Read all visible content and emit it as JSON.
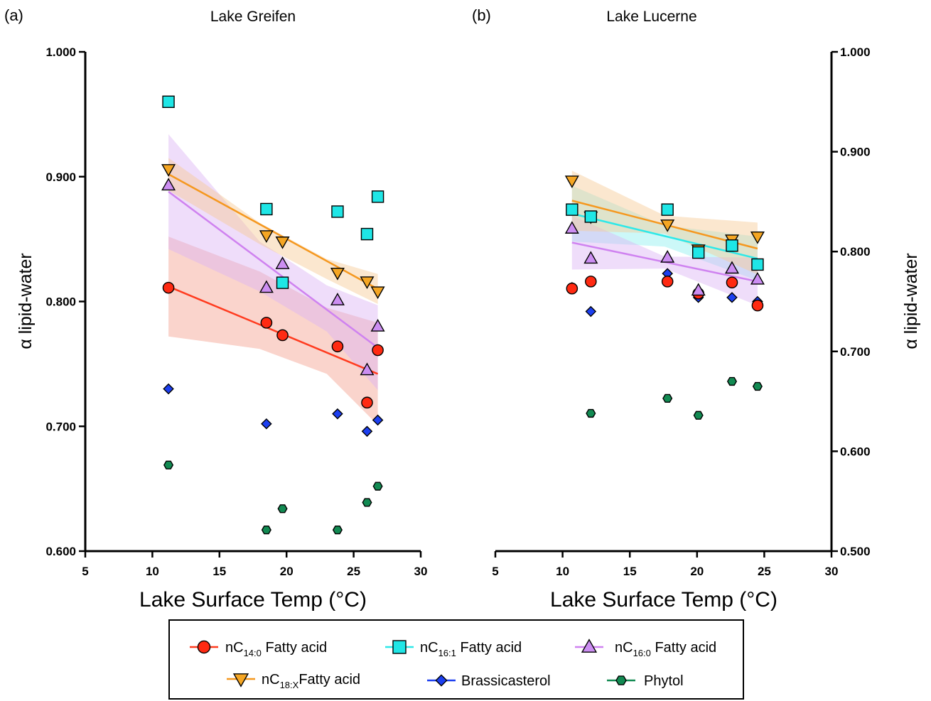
{
  "chart_data": [
    {
      "panel": "(a)",
      "title": "Lake Greifen",
      "type": "scatter",
      "xlabel": "Lake Surface Temp (°C)",
      "ylabel": "α lipid-water",
      "xlim": [
        5,
        30
      ],
      "ylim": [
        0.6,
        1.0
      ],
      "x_ticks": [
        "5",
        "10",
        "15",
        "20",
        "25",
        "30"
      ],
      "y_ticks": [
        "0.600",
        "0.700",
        "0.800",
        "0.900",
        "1.000"
      ],
      "y_axis_side": "left",
      "series": [
        {
          "key": "c14",
          "x": [
            11.2,
            18.5,
            19.7,
            23.8,
            26.0,
            26.8
          ],
          "y": [
            0.811,
            0.783,
            0.773,
            0.764,
            0.719,
            0.761
          ],
          "fit": [
            [
              11.2,
              0.812
            ],
            [
              26.8,
              0.742
            ]
          ],
          "band": [
            [
              11.2,
              0.852,
              0.772
            ],
            [
              18,
              0.824,
              0.762
            ],
            [
              23,
              0.795,
              0.742
            ],
            [
              26.8,
              0.783,
              0.701
            ]
          ]
        },
        {
          "key": "c161",
          "x": [
            11.2,
            18.5,
            19.7,
            23.8,
            26.0,
            26.8
          ],
          "y": [
            0.96,
            0.874,
            0.815,
            0.872,
            0.854,
            0.884
          ]
        },
        {
          "key": "c160",
          "x": [
            11.2,
            18.5,
            19.7,
            23.8,
            26.0,
            26.8
          ],
          "y": [
            0.893,
            0.811,
            0.83,
            0.801,
            0.745,
            0.78
          ],
          "fit": [
            [
              11.2,
              0.888
            ],
            [
              26.8,
              0.763
            ]
          ],
          "band": [
            [
              11.2,
              0.934,
              0.842
            ],
            [
              18,
              0.848,
              0.808
            ],
            [
              23,
              0.813,
              0.776
            ],
            [
              26.8,
              0.797,
              0.729
            ]
          ]
        },
        {
          "key": "c18x",
          "x": [
            11.2,
            18.5,
            19.7,
            23.8,
            26.0,
            26.8
          ],
          "y": [
            0.906,
            0.853,
            0.848,
            0.823,
            0.816,
            0.808
          ],
          "fit": [
            [
              11.2,
              0.902
            ],
            [
              26.8,
              0.81
            ]
          ],
          "band": [
            [
              11.2,
              0.915,
              0.889
            ],
            [
              18,
              0.863,
              0.846
            ],
            [
              23,
              0.834,
              0.818
            ],
            [
              26.8,
              0.822,
              0.798
            ]
          ]
        },
        {
          "key": "bras",
          "x": [
            11.2,
            18.5,
            23.8,
            26.0,
            26.8
          ],
          "y": [
            0.73,
            0.702,
            0.71,
            0.696,
            0.705
          ]
        },
        {
          "key": "phyt",
          "x": [
            11.2,
            18.5,
            19.7,
            23.8,
            26.0,
            26.8
          ],
          "y": [
            0.669,
            0.617,
            0.634,
            0.617,
            0.639,
            0.652
          ]
        }
      ]
    },
    {
      "panel": "(b)",
      "title": "Lake Lucerne",
      "type": "scatter",
      "xlabel": "Lake Surface Temp (°C)",
      "ylabel": "α lipid-water",
      "xlim": [
        5,
        30
      ],
      "ylim": [
        0.5,
        1.0
      ],
      "x_ticks": [
        "5",
        "10",
        "15",
        "20",
        "25",
        "30"
      ],
      "y_ticks": [
        "0.500",
        "0.600",
        "0.700",
        "0.800",
        "0.900",
        "1.000"
      ],
      "y_axis_side": "right",
      "series": [
        {
          "key": "c14",
          "x": [
            10.7,
            12.1,
            17.8,
            20.1,
            22.6,
            24.5
          ],
          "y": [
            0.763,
            0.77,
            0.77,
            0.758,
            0.769,
            0.746
          ]
        },
        {
          "key": "c161",
          "x": [
            10.7,
            12.1,
            17.8,
            20.1,
            22.6,
            24.5
          ],
          "y": [
            0.842,
            0.835,
            0.842,
            0.799,
            0.806,
            0.787
          ],
          "fit": [
            [
              10.7,
              0.838
            ],
            [
              24.5,
              0.793
            ]
          ],
          "band": [
            [
              10.7,
              0.866,
              0.81
            ],
            [
              17.6,
              0.826,
              0.805
            ],
            [
              24.5,
              0.815,
              0.771
            ]
          ]
        },
        {
          "key": "c160",
          "x": [
            10.7,
            12.1,
            17.8,
            20.1,
            22.6,
            24.5
          ],
          "y": [
            0.823,
            0.793,
            0.794,
            0.761,
            0.783,
            0.772
          ],
          "fit": [
            [
              10.7,
              0.809
            ],
            [
              24.5,
              0.77
            ]
          ],
          "band": [
            [
              10.7,
              0.836,
              0.782
            ],
            [
              17.6,
              0.795,
              0.783
            ],
            [
              24.5,
              0.794,
              0.746
            ]
          ]
        },
        {
          "key": "c18x",
          "x": [
            10.7,
            12.1,
            17.8,
            20.1,
            22.6,
            24.5
          ],
          "y": [
            0.871,
            0.835,
            0.827,
            0.802,
            0.812,
            0.815
          ],
          "fit": [
            [
              10.7,
              0.851
            ],
            [
              24.5,
              0.803
            ]
          ],
          "band": [
            [
              10.7,
              0.881,
              0.821
            ],
            [
              17.6,
              0.836,
              0.818
            ],
            [
              24.5,
              0.829,
              0.777
            ]
          ]
        },
        {
          "key": "bras",
          "x": [
            10.7,
            12.1,
            17.8,
            20.1,
            22.6,
            24.5
          ],
          "y": [
            0.764,
            0.74,
            0.778,
            0.754,
            0.754,
            0.75
          ]
        },
        {
          "key": "phyt",
          "x": [
            12.1,
            17.8,
            20.1,
            22.6,
            24.5
          ],
          "y": [
            0.638,
            0.653,
            0.636,
            0.67,
            0.665
          ]
        }
      ]
    }
  ],
  "legend": [
    {
      "key": "c14",
      "prefix": "nC",
      "sub": "14:0",
      "suffix": " Fatty acid",
      "marker": "circle",
      "fill": "#ff2a12",
      "line": "#ff3b1f",
      "band": "#f4a08e"
    },
    {
      "key": "c161",
      "prefix": "nC",
      "sub": "16:1",
      "suffix": " Fatty acid",
      "marker": "square",
      "fill": "#1fe6e6",
      "line": "#2ee8e8",
      "band": "#8ff0f0"
    },
    {
      "key": "c160",
      "prefix": "nC",
      "sub": "16:0",
      "suffix": " Fatty acid",
      "marker": "triangle-up",
      "fill": "#cc8ef2",
      "line": "#cf82f0",
      "band": "#dcb4f5"
    },
    {
      "key": "c18x",
      "prefix": "nC",
      "sub": "18:X",
      "suffix": "Fatty acid",
      "marker": "triangle-down",
      "fill": "#f5a623",
      "line": "#f5981f",
      "band": "#f7c995"
    },
    {
      "key": "bras",
      "prefix": "Brassicasterol",
      "sub": "",
      "suffix": "",
      "marker": "diamond",
      "fill": "#1c3ff0",
      "line": "#1c3ff0",
      "band": ""
    },
    {
      "key": "phyt",
      "prefix": "Phytol",
      "sub": "",
      "suffix": "",
      "marker": "hexagon",
      "fill": "#128a52",
      "line": "#128a52",
      "band": ""
    }
  ]
}
